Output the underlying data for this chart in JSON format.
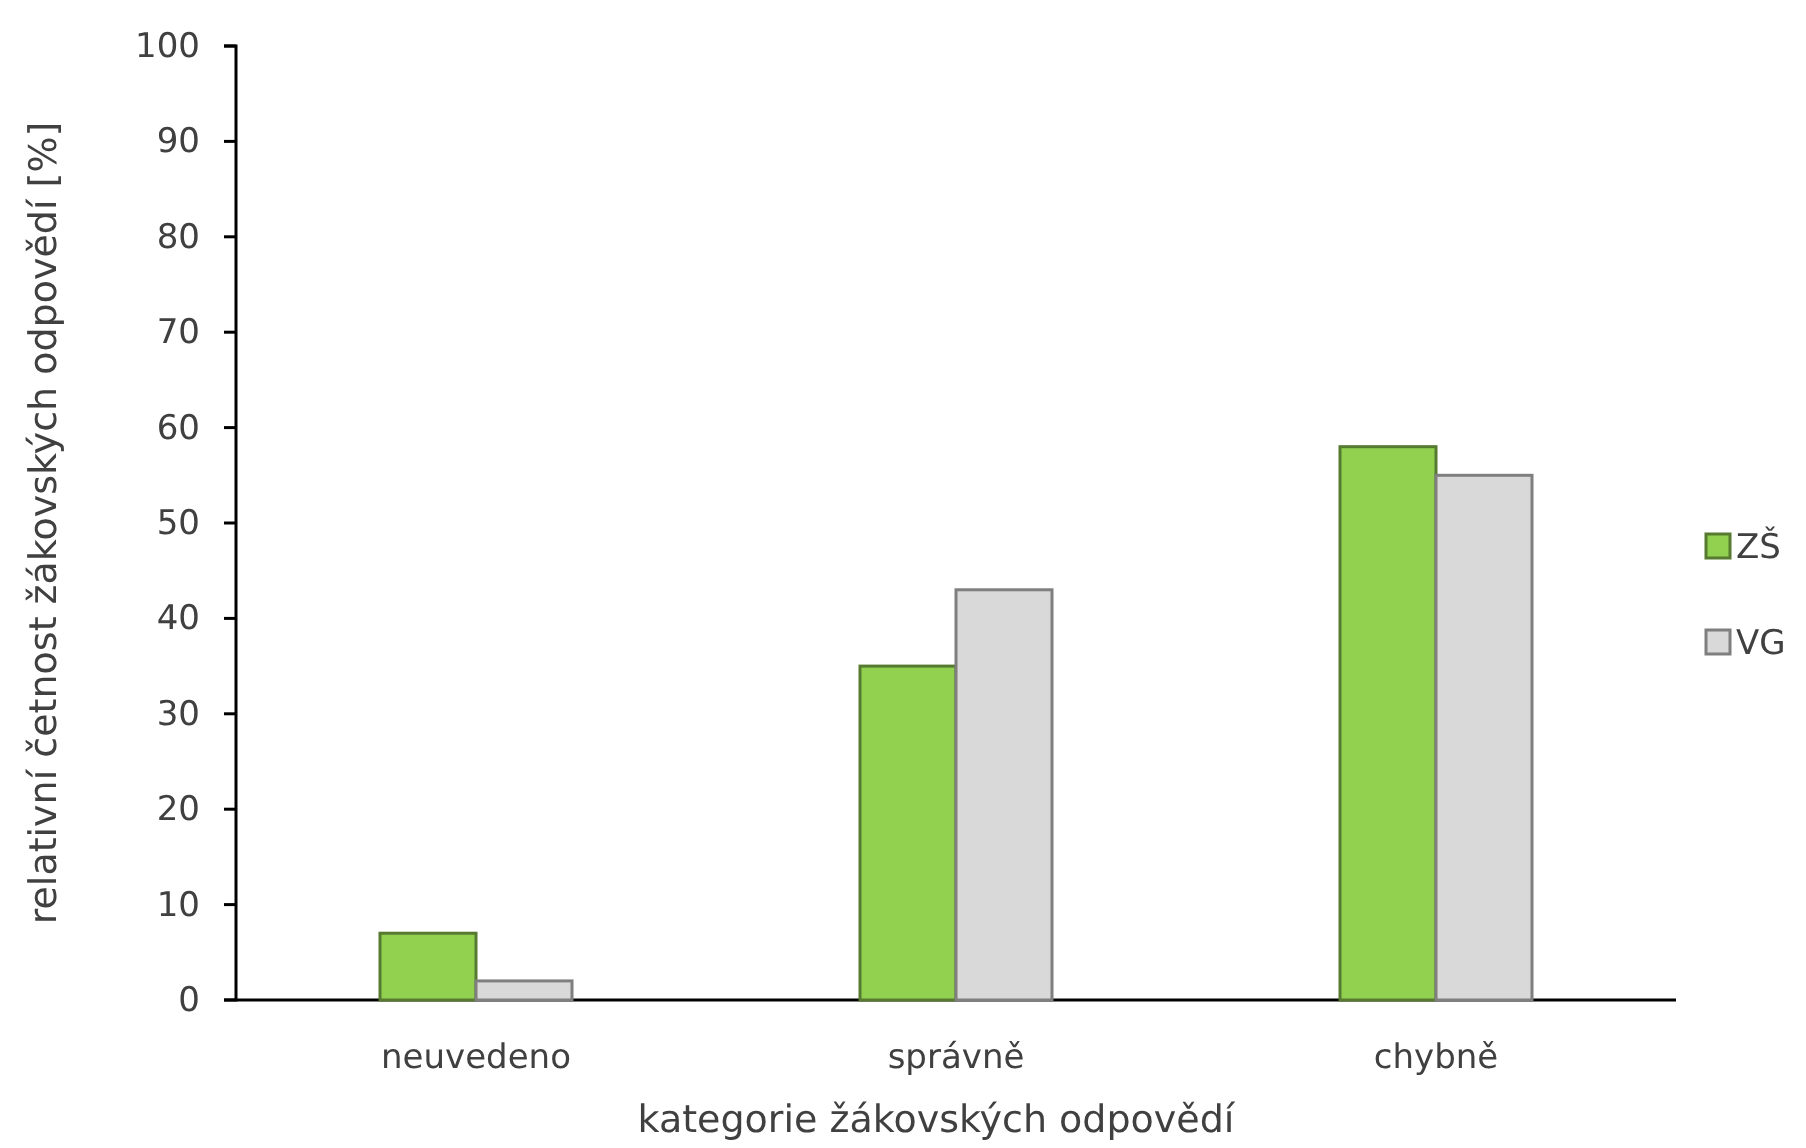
{
  "chart_data": {
    "type": "bar",
    "xlabel": "kategorie žákovských odpovědí",
    "ylabel": "relativní četnost žákovských odpovědí [%]",
    "categories": [
      "neuvedeno",
      "správně",
      "chybně"
    ],
    "series": [
      {
        "name": "ZŠ",
        "color": "#92d050",
        "values": [
          7,
          35,
          58
        ]
      },
      {
        "name": "VG",
        "color": "#d9d9d9",
        "values": [
          2,
          43,
          55
        ]
      }
    ],
    "ylim": [
      0,
      100
    ],
    "yticks": [
      0,
      10,
      20,
      30,
      40,
      50,
      60,
      70,
      80,
      90,
      100
    ],
    "grid": false,
    "legend": "right"
  }
}
